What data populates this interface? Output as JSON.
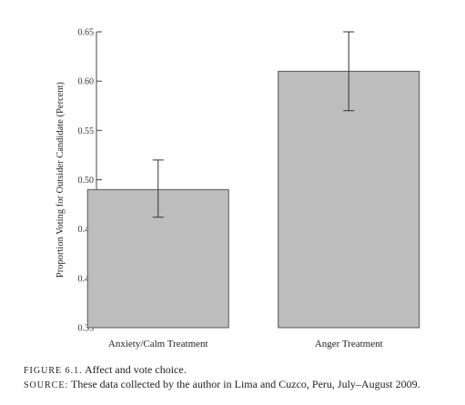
{
  "chart_data": {
    "type": "bar",
    "categories": [
      "Anxiety/Calm Treatment",
      "Anger Treatment"
    ],
    "values": [
      0.49,
      0.61
    ],
    "error_low": [
      0.462,
      0.57
    ],
    "error_high": [
      0.52,
      0.65
    ],
    "ylabel": "Proportion Voting for Outsider Candidate (Percent)",
    "xlabel": "",
    "ylim": [
      0.35,
      0.65
    ],
    "yticks": [
      "0.35",
      "0.40",
      "0.45",
      "0.50",
      "0.55",
      "0.60",
      "0.65"
    ],
    "grid": false,
    "bar_color": "#bdbdbd",
    "bar_edge_color": "#555555"
  },
  "caption": {
    "figure_label": "FIGURE 6.1.",
    "figure_title": "Affect and vote choice.",
    "source_label": "SOURCE:",
    "source_text": "These data collected by the author in Lima and Cuzco, Peru, July–August 2009."
  }
}
